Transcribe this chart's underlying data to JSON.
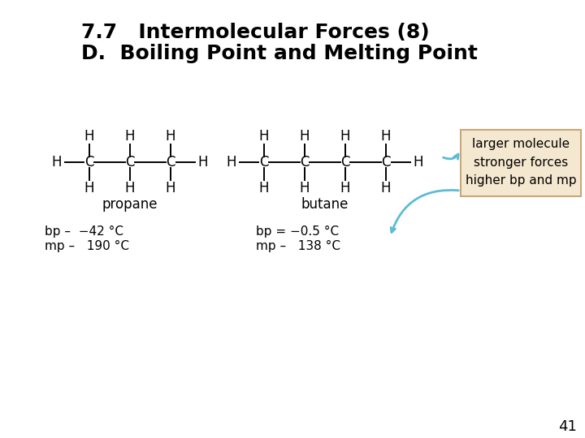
{
  "title_line1": "7.7   Intermolecular Forces (8)",
  "title_line2": "D.  Boiling Point and Melting Point",
  "title_fontsize": 18,
  "subtitle_fontsize": 18,
  "bg_color": "#ffffff",
  "text_color": "#000000",
  "arrow_color": "#5bbcd6",
  "box_bg": "#f5e8d0",
  "box_border": "#c8a87a",
  "box_text": "larger molecule\nstronger forces\nhigher bp and mp",
  "propane_label": "propane",
  "butane_label": "butane",
  "propane_bp": "bp –  −42 °C",
  "propane_mp": "mp –   190 °C",
  "butane_bp": "bp = −0.5 °C",
  "butane_mp": "mp –   138 °C",
  "page_number": "41"
}
